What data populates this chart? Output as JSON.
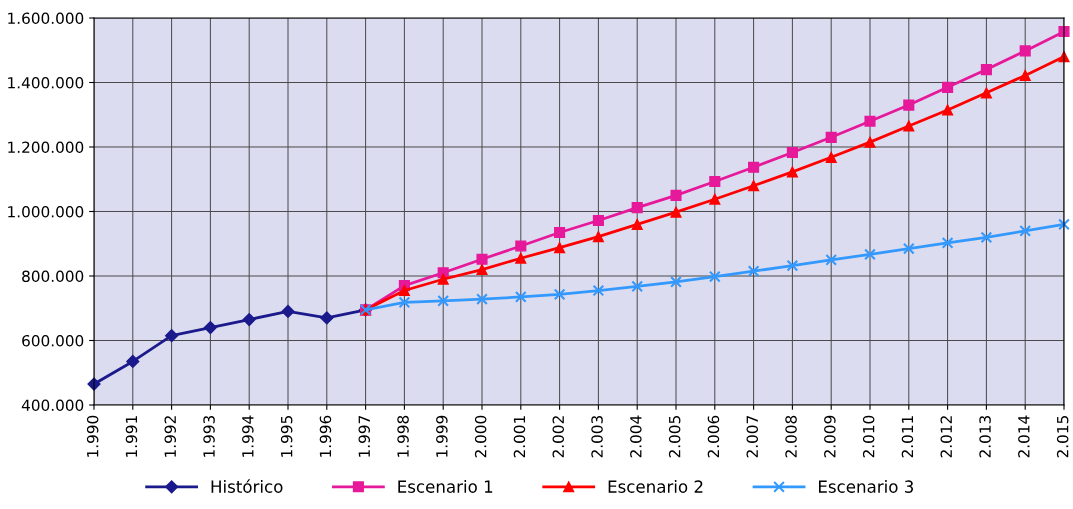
{
  "chart_data": {
    "type": "line",
    "categories": [
      "1.990",
      "1.991",
      "1.992",
      "1.993",
      "1.994",
      "1.995",
      "1.996",
      "1.997",
      "1.998",
      "1.999",
      "2.000",
      "2.001",
      "2.002",
      "2.003",
      "2.004",
      "2.005",
      "2.006",
      "2.007",
      "2.008",
      "2.009",
      "2.010",
      "2.011",
      "2.012",
      "2.013",
      "2.014",
      "2.015"
    ],
    "series": [
      {
        "name": "Histórico",
        "color": "#1a1a8c",
        "marker": "diamond",
        "values": [
          465000,
          535000,
          615000,
          640000,
          665000,
          690000,
          670000,
          695000,
          null,
          null,
          null,
          null,
          null,
          null,
          null,
          null,
          null,
          null,
          null,
          null,
          null,
          null,
          null,
          null,
          null,
          null
        ]
      },
      {
        "name": "Escenario 1",
        "color": "#e6199a",
        "marker": "square",
        "values": [
          null,
          null,
          null,
          null,
          null,
          null,
          null,
          695000,
          770000,
          810000,
          852000,
          893000,
          935000,
          972000,
          1012000,
          1050000,
          1093000,
          1137000,
          1183000,
          1230000,
          1280000,
          1330000,
          1385000,
          1440000,
          1498000,
          1558000
        ]
      },
      {
        "name": "Escenario 2",
        "color": "#ff0000",
        "marker": "triangle",
        "values": [
          null,
          null,
          null,
          null,
          null,
          null,
          null,
          695000,
          755000,
          790000,
          820000,
          855000,
          888000,
          922000,
          960000,
          998000,
          1038000,
          1080000,
          1123000,
          1168000,
          1215000,
          1265000,
          1315000,
          1368000,
          1422000,
          1480000
        ]
      },
      {
        "name": "Escenario 3",
        "color": "#3399ff",
        "marker": "cross",
        "values": [
          null,
          null,
          null,
          null,
          null,
          null,
          null,
          695000,
          718000,
          723000,
          728000,
          735000,
          743000,
          755000,
          768000,
          782000,
          798000,
          815000,
          832000,
          850000,
          867000,
          885000,
          903000,
          920000,
          940000,
          960000
        ]
      }
    ],
    "ylim": [
      400000,
      1600000
    ],
    "yticks": [
      {
        "value": 400000,
        "label": "400.000"
      },
      {
        "value": 600000,
        "label": "600.000"
      },
      {
        "value": 800000,
        "label": "800.000"
      },
      {
        "value": 1000000,
        "label": "1.000.000"
      },
      {
        "value": 1200000,
        "label": "1.200.000"
      },
      {
        "value": 1400000,
        "label": "1.400.000"
      },
      {
        "value": 1600000,
        "label": "1.600.000"
      }
    ],
    "grid": true,
    "legend": "bottom",
    "line_style": "solid"
  }
}
